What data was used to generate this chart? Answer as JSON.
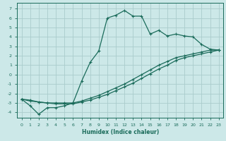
{
  "xlabel": "Humidex (Indice chaleur)",
  "bg_color": "#cce8e8",
  "grid_color": "#aacccc",
  "line_color": "#1a6b5a",
  "xlim": [
    -0.5,
    23.5
  ],
  "ylim": [
    -4.6,
    7.6
  ],
  "xticks": [
    0,
    1,
    2,
    3,
    4,
    5,
    6,
    7,
    8,
    9,
    10,
    11,
    12,
    13,
    14,
    15,
    16,
    17,
    18,
    19,
    20,
    21,
    22,
    23
  ],
  "yticks": [
    -4,
    -3,
    -2,
    -1,
    0,
    1,
    2,
    3,
    4,
    5,
    6,
    7
  ],
  "line1_x": [
    0,
    1,
    2,
    3,
    4,
    5,
    6,
    7,
    8,
    9,
    10,
    11,
    12,
    13,
    14,
    15,
    16,
    17,
    18,
    19,
    20,
    21,
    22,
    23
  ],
  "line1_y": [
    -2.6,
    -3.3,
    -4.2,
    -3.5,
    -3.5,
    -3.3,
    -3.0,
    -0.7,
    1.3,
    2.5,
    6.0,
    6.3,
    6.8,
    6.2,
    6.2,
    4.3,
    4.7,
    4.1,
    4.3,
    4.1,
    4.0,
    3.2,
    2.7,
    2.6
  ],
  "line2_x": [
    0,
    1,
    2,
    3,
    4,
    5,
    6,
    7,
    8,
    9,
    10,
    11,
    12,
    13,
    14,
    15,
    16,
    17,
    18,
    19,
    20,
    21,
    22,
    23
  ],
  "line2_y": [
    -2.6,
    -2.8,
    -2.9,
    -3.0,
    -3.0,
    -3.0,
    -3.0,
    -2.8,
    -2.5,
    -2.2,
    -1.8,
    -1.4,
    -1.0,
    -0.5,
    0.0,
    0.5,
    1.0,
    1.4,
    1.8,
    2.0,
    2.2,
    2.4,
    2.6,
    2.6
  ],
  "line3_x": [
    0,
    1,
    2,
    3,
    4,
    5,
    6,
    7,
    8,
    9,
    10,
    11,
    12,
    13,
    14,
    15,
    16,
    17,
    18,
    19,
    20,
    21,
    22,
    23
  ],
  "line3_y": [
    -2.6,
    -2.7,
    -2.9,
    -3.0,
    -3.1,
    -3.1,
    -3.1,
    -2.9,
    -2.7,
    -2.4,
    -2.1,
    -1.7,
    -1.3,
    -0.9,
    -0.4,
    0.1,
    0.6,
    1.0,
    1.5,
    1.8,
    2.0,
    2.2,
    2.4,
    2.6
  ]
}
